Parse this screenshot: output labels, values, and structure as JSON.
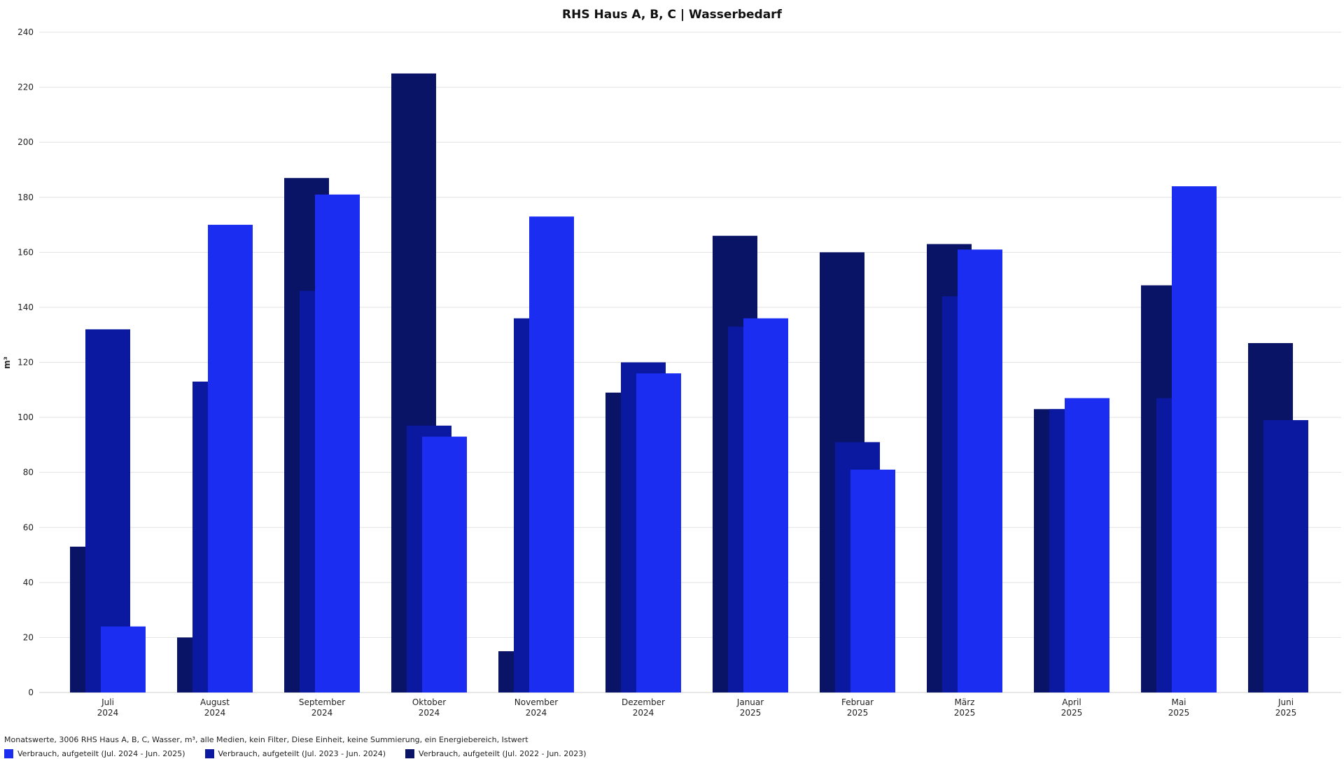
{
  "chart_data": {
    "type": "bar",
    "title": "RHS Haus A, B, C | Wasserbedarf",
    "ylabel": "m³",
    "xlabel": "",
    "ylim": [
      0,
      240
    ],
    "yticks": [
      0,
      20,
      40,
      60,
      80,
      100,
      120,
      140,
      160,
      180,
      200,
      220,
      240
    ],
    "grid": true,
    "legend_position": "bottom-left",
    "categories": [
      {
        "month": "Juli",
        "year": "2024"
      },
      {
        "month": "August",
        "year": "2024"
      },
      {
        "month": "September",
        "year": "2024"
      },
      {
        "month": "Oktober",
        "year": "2024"
      },
      {
        "month": "November",
        "year": "2024"
      },
      {
        "month": "Dezember",
        "year": "2024"
      },
      {
        "month": "Januar",
        "year": "2025"
      },
      {
        "month": "Februar",
        "year": "2025"
      },
      {
        "month": "März",
        "year": "2025"
      },
      {
        "month": "April",
        "year": "2025"
      },
      {
        "month": "Mai",
        "year": "2025"
      },
      {
        "month": "Juni",
        "year": "2025"
      }
    ],
    "series": [
      {
        "name": "Verbrauch, aufgeteilt (Jul. 2022 - Jun. 2023)",
        "color": "#0a1466",
        "values": [
          53,
          20,
          187,
          225,
          15,
          109,
          166,
          160,
          163,
          103,
          148,
          127
        ]
      },
      {
        "name": "Verbrauch, aufgeteilt (Jul. 2023 - Jun. 2024)",
        "color": "#0b19a1",
        "values": [
          132,
          113,
          146,
          97,
          136,
          120,
          133,
          91,
          144,
          103,
          107,
          99
        ]
      },
      {
        "name": "Verbrauch, aufgeteilt (Jul. 2024 - Jun. 2025)",
        "color": "#1a2df0",
        "values": [
          24,
          170,
          181,
          93,
          173,
          116,
          136,
          81,
          161,
          107,
          184,
          null
        ]
      }
    ]
  },
  "footer": {
    "info": "Monatswerte, 3006 RHS Haus A, B, C, Wasser, m³, alle Medien, kein Filter, Diese Einheit, keine Summierung, ein Energiebereich, Istwert"
  },
  "legend": [
    {
      "label": "Verbrauch, aufgeteilt (Jul. 2024 - Jun. 2025)",
      "color": "#1a2df0"
    },
    {
      "label": "Verbrauch, aufgeteilt (Jul. 2023 - Jun. 2024)",
      "color": "#0b19a1"
    },
    {
      "label": "Verbrauch, aufgeteilt (Jul. 2022 - Jun. 2023)",
      "color": "#0a1466"
    }
  ]
}
